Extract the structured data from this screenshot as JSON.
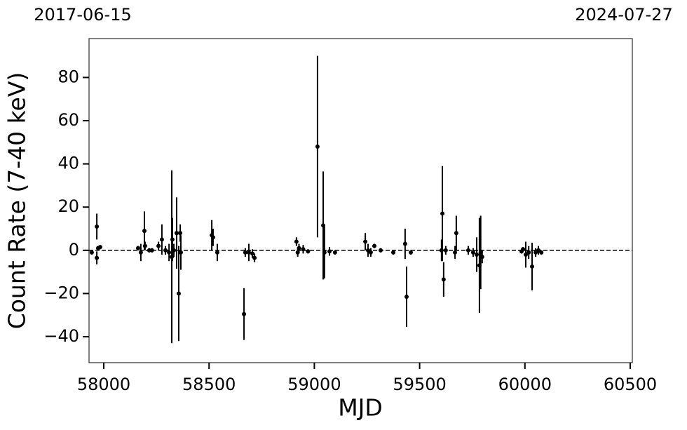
{
  "chart_data": {
    "type": "errorbar",
    "top_labels": [
      "2017-06-15",
      "2024-07-27"
    ],
    "xlabel": "MJD",
    "ylabel": "Count Rate (7-40 keV)",
    "x": [
      57943,
      57967,
      57967,
      57973,
      57983,
      58163,
      58176,
      58193,
      58196,
      58216,
      58229,
      58260,
      58276,
      58293,
      58310,
      58323,
      58326,
      58333,
      58346,
      58356,
      58363,
      58366,
      58513,
      58519,
      58539,
      58666,
      58672,
      58689,
      58706,
      58716,
      58915,
      58921,
      58927,
      58947,
      58970,
      59015,
      59042,
      59048,
      59072,
      59098,
      59242,
      59255,
      59268,
      59285,
      59315,
      59375,
      59431,
      59438,
      59458,
      59604,
      59608,
      59614,
      59624,
      59668,
      59674,
      59731,
      59754,
      59771,
      59784,
      59790,
      59797,
      59984,
      59991,
      60004,
      60018,
      60034,
      60051,
      60064,
      60078
    ],
    "values": [
      -1,
      11,
      -3.5,
      1,
      1.5,
      1,
      -1,
      9,
      2,
      0,
      0,
      2,
      5,
      0,
      -1,
      -3,
      5,
      0,
      8,
      -20,
      8,
      -1,
      7,
      6,
      -1,
      -29.5,
      -1,
      -1,
      -1.5,
      -3.5,
      4,
      -1,
      1,
      0.5,
      -0.5,
      48,
      11.5,
      -1,
      -0.5,
      -1,
      4,
      0,
      -1,
      2,
      0,
      -1,
      3,
      -21.5,
      -1,
      0,
      17,
      -13.5,
      0,
      -1,
      8,
      0,
      -1,
      -2,
      -7,
      -1,
      -3,
      -0.5,
      0.5,
      -2,
      -1,
      -7.5,
      -1,
      0,
      -1
    ],
    "errors": [
      1,
      6,
      3,
      1,
      1,
      1,
      4,
      9,
      2,
      1,
      1,
      2,
      7,
      2,
      4,
      40,
      10,
      3,
      16.5,
      22,
      4,
      8,
      7,
      4,
      4,
      12,
      2,
      4,
      2,
      2,
      2,
      2,
      2,
      2,
      1,
      42,
      25,
      12,
      2,
      1,
      4,
      3,
      2,
      1,
      1,
      1,
      7,
      14,
      1,
      5,
      22,
      8,
      2,
      3,
      8,
      2,
      2,
      8,
      22,
      17,
      3,
      1,
      1,
      6,
      3,
      11,
      2,
      2,
      1
    ],
    "color": "#000000",
    "reference_line": 0,
    "xlim": [
      57930,
      60510
    ],
    "ylim": [
      -52,
      98
    ],
    "xticks": [
      58000,
      58500,
      59000,
      59500,
      60000,
      60500
    ],
    "yticks": [
      {
        "value": -40,
        "label": "−40"
      },
      {
        "value": -20,
        "label": "−20"
      },
      0,
      20,
      40,
      60,
      80
    ]
  }
}
